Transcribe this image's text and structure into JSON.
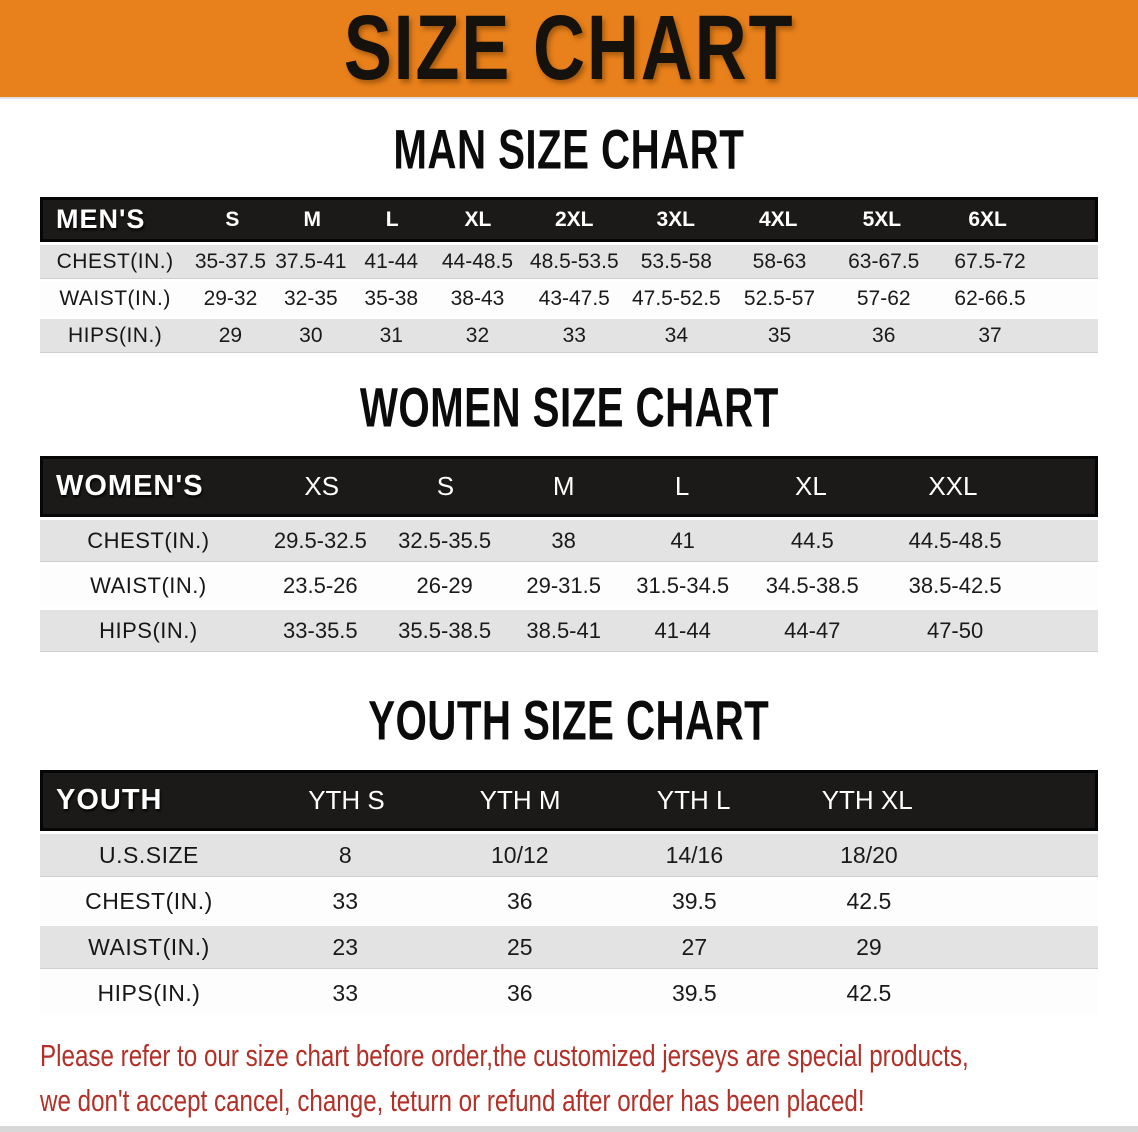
{
  "banner": {
    "title": "SIZE CHART"
  },
  "colors": {
    "banner_orange": "#E8811B",
    "table_header_black": "#1C1A18",
    "row_gray": "#E3E3E3",
    "note_red": "#B23028"
  },
  "chart_data": [
    {
      "type": "table",
      "title": "MAN SIZE CHART",
      "corner": "MEN'S",
      "columns": [
        "S",
        "M",
        "L",
        "XL",
        "2XL",
        "3XL",
        "4XL",
        "5XL",
        "6XL"
      ],
      "rows": [
        {
          "label": "CHEST(IN.)",
          "values": [
            "35-37.5",
            "37.5-41",
            "41-44",
            "44-48.5",
            "48.5-53.5",
            "53.5-58",
            "58-63",
            "63-67.5",
            "67.5-72"
          ]
        },
        {
          "label": "WAIST(IN.)",
          "values": [
            "29-32",
            "32-35",
            "35-38",
            "38-43",
            "43-47.5",
            "47.5-52.5",
            "52.5-57",
            "57-62",
            "62-66.5"
          ]
        },
        {
          "label": "HIPS(IN.)",
          "values": [
            "29",
            "30",
            "31",
            "32",
            "33",
            "34",
            "35",
            "36",
            "37"
          ]
        }
      ]
    },
    {
      "type": "table",
      "title": "WOMEN SIZE CHART",
      "corner": "WOMEN'S",
      "columns": [
        "XS",
        "S",
        "M",
        "L",
        "XL",
        "XXL"
      ],
      "rows": [
        {
          "label": "CHEST(IN.)",
          "values": [
            "29.5-32.5",
            "32.5-35.5",
            "38",
            "41",
            "44.5",
            "44.5-48.5"
          ]
        },
        {
          "label": "WAIST(IN.)",
          "values": [
            "23.5-26",
            "26-29",
            "29-31.5",
            "31.5-34.5",
            "34.5-38.5",
            "38.5-42.5"
          ]
        },
        {
          "label": "HIPS(IN.)",
          "values": [
            "33-35.5",
            "35.5-38.5",
            "38.5-41",
            "41-44",
            "44-47",
            "47-50"
          ]
        }
      ]
    },
    {
      "type": "table",
      "title": "YOUTH SIZE CHART",
      "corner": "YOUTH",
      "columns": [
        "YTH S",
        "YTH M",
        "YTH L",
        "YTH XL"
      ],
      "rows": [
        {
          "label": "U.S.SIZE",
          "values": [
            "8",
            "10/12",
            "14/16",
            "18/20"
          ]
        },
        {
          "label": "CHEST(IN.)",
          "values": [
            "33",
            "36",
            "39.5",
            "42.5"
          ]
        },
        {
          "label": "WAIST(IN.)",
          "values": [
            "23",
            "25",
            "27",
            "29"
          ]
        },
        {
          "label": "HIPS(IN.)",
          "values": [
            "33",
            "36",
            "39.5",
            "42.5"
          ]
        }
      ]
    }
  ],
  "footer": {
    "line1": "Please refer to our size chart before order,the customized jerseys are special products,",
    "line2": "we don't accept cancel, change, teturn or refund after order has been placed!"
  }
}
